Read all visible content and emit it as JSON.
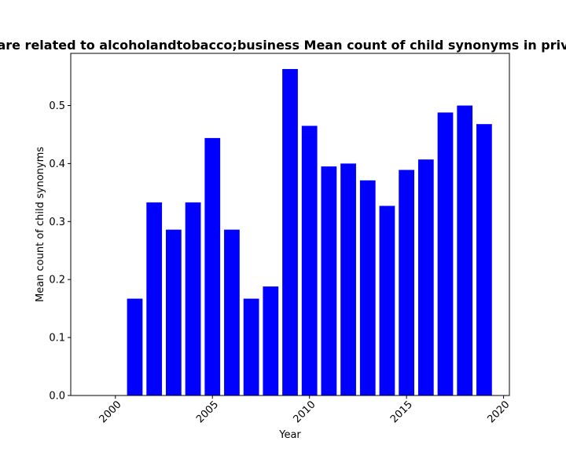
{
  "chart_data": {
    "type": "bar",
    "title": "are related to alcoholandtobacco;business Mean count of child synonyms in priv",
    "xlabel": "Year",
    "ylabel": "Mean count of child synonyms",
    "x": [
      2001,
      2002,
      2003,
      2004,
      2005,
      2006,
      2007,
      2008,
      2009,
      2010,
      2011,
      2012,
      2013,
      2014,
      2015,
      2016,
      2017,
      2018,
      2019
    ],
    "values": [
      0.167,
      0.333,
      0.286,
      0.333,
      0.444,
      0.286,
      0.167,
      0.188,
      0.563,
      0.465,
      0.395,
      0.4,
      0.371,
      0.327,
      0.389,
      0.407,
      0.488,
      0.5,
      0.468
    ],
    "xlim": [
      1997.7,
      2020.3
    ],
    "ylim": [
      0,
      0.59
    ],
    "xticks": [
      "2000",
      "2005",
      "2010",
      "2015",
      "2020"
    ],
    "yticks": [
      "0.0",
      "0.1",
      "0.2",
      "0.3",
      "0.4",
      "0.5"
    ],
    "bar_color": "#0000ff",
    "grid": false,
    "legend": "none"
  }
}
